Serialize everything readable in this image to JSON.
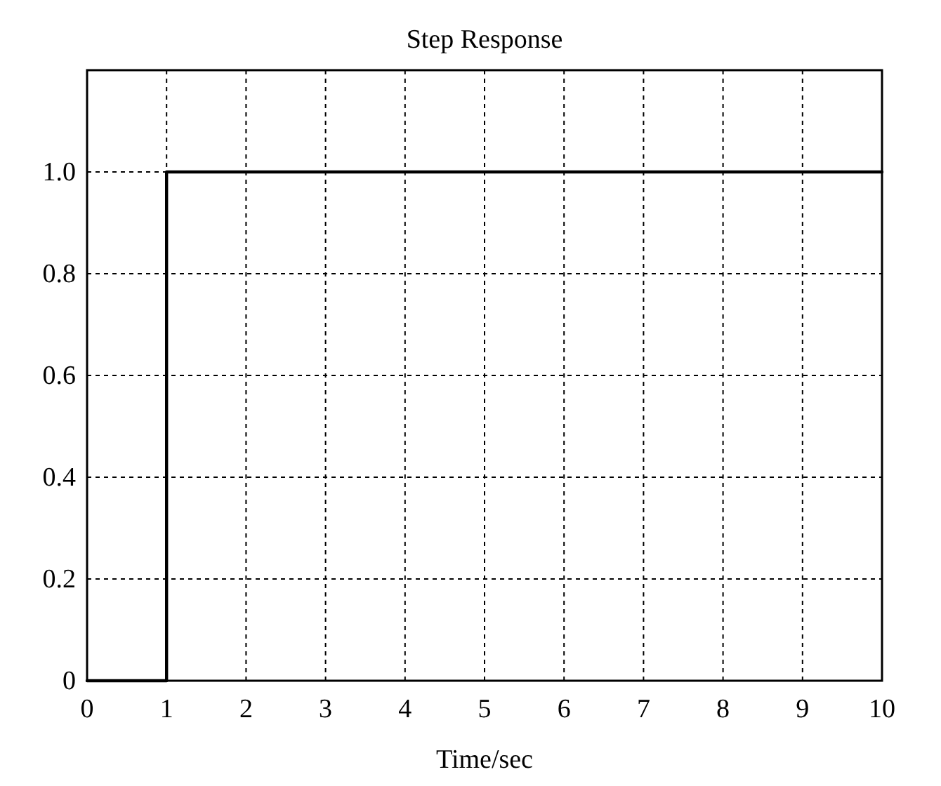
{
  "chart_data": {
    "type": "step",
    "title": "Step Response",
    "xlabel": "Time/sec",
    "x": [
      0,
      1,
      10
    ],
    "values": [
      0,
      1,
      1
    ],
    "color": "#000000",
    "line_style": "solid",
    "xlim": [
      0,
      10
    ],
    "xticks": [
      0,
      1,
      2,
      3,
      4,
      5,
      6,
      7,
      8,
      9,
      10
    ],
    "ylim": [
      0,
      1.2
    ],
    "yticks": [
      0,
      0.2,
      0.4,
      0.6,
      0.8,
      {
        "value": 1,
        "label": "1.0"
      }
    ],
    "grid": true
  }
}
